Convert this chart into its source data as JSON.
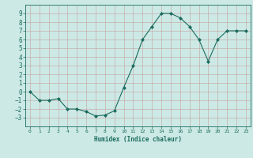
{
  "x": [
    0,
    1,
    2,
    3,
    4,
    5,
    6,
    7,
    8,
    9,
    10,
    11,
    12,
    13,
    14,
    15,
    16,
    17,
    18,
    19,
    20,
    21,
    22,
    23
  ],
  "y": [
    0,
    -1,
    -1,
    -0.8,
    -2,
    -2,
    -2.3,
    -2.8,
    -2.7,
    -2.2,
    0.5,
    3.0,
    6.0,
    7.5,
    9.0,
    9.0,
    8.5,
    7.5,
    6.0,
    3.5,
    6.0,
    7.0,
    7.0,
    7.0
  ],
  "line_color": "#1a6b5e",
  "marker": "D",
  "marker_size": 2,
  "bg_color": "#cce9e5",
  "grid_color": "#aad0cc",
  "xlabel": "Humidex (Indice chaleur)",
  "ylim": [
    -4,
    10
  ],
  "xlim": [
    -0.5,
    23.5
  ],
  "yticks": [
    -3,
    -2,
    -1,
    0,
    1,
    2,
    3,
    4,
    5,
    6,
    7,
    8,
    9
  ],
  "xticks": [
    0,
    1,
    2,
    3,
    4,
    5,
    6,
    7,
    8,
    9,
    10,
    11,
    12,
    13,
    14,
    15,
    16,
    17,
    18,
    19,
    20,
    21,
    22,
    23
  ]
}
